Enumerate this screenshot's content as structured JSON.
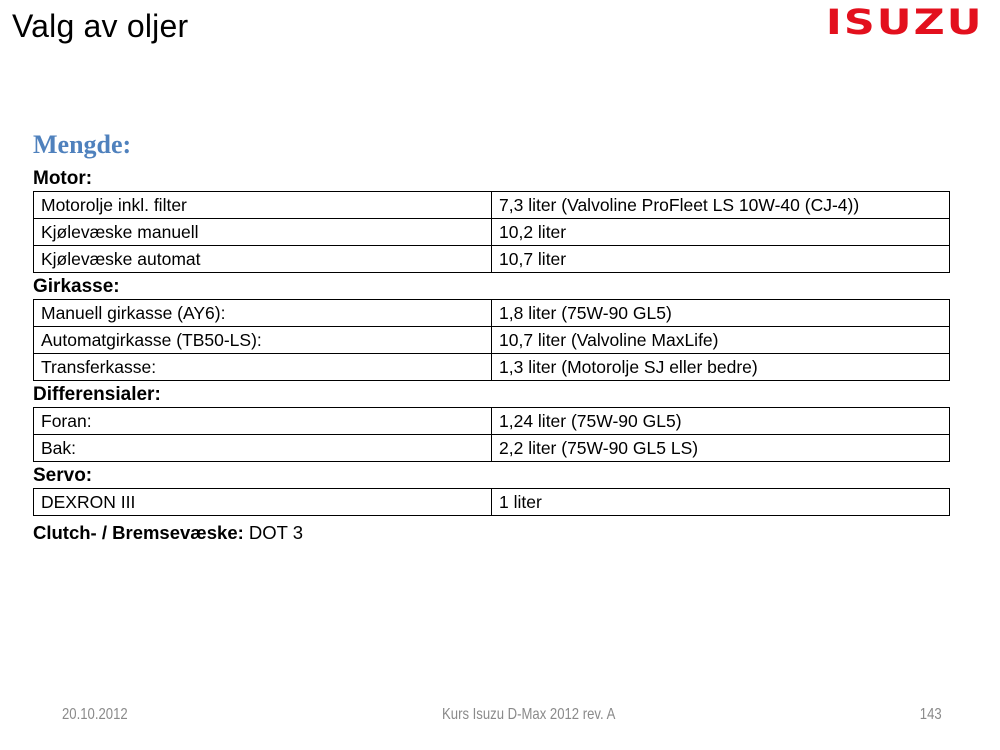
{
  "slide": {
    "title": "Valg av oljer",
    "logo": "ISUZU",
    "heading": "Mengde:",
    "sections": [
      {
        "label": "Motor:",
        "rows": [
          {
            "item": "Motorolje inkl. filter",
            "value": "7,3 liter (Valvoline ProFleet LS 10W-40 (CJ-4))"
          },
          {
            "item": "Kjølevæske manuell",
            "value": "10,2 liter"
          },
          {
            "item": "Kjølevæske automat",
            "value": "10,7 liter"
          }
        ]
      },
      {
        "label": "Girkasse:",
        "rows": [
          {
            "item": "Manuell girkasse (AY6):",
            "value": "1,8 liter (75W-90 GL5)"
          },
          {
            "item": "Automatgirkasse (TB50-LS):",
            "value": "10,7 liter (Valvoline MaxLife)"
          },
          {
            "item": "Transferkasse:",
            "value": "1,3 liter (Motorolje SJ eller bedre)"
          }
        ]
      },
      {
        "label": "Differensialer:",
        "rows": [
          {
            "item": "Foran:",
            "value": "1,24 liter (75W-90 GL5)"
          },
          {
            "item": "Bak:",
            "value": "2,2 liter (75W-90 GL5 LS)"
          }
        ]
      },
      {
        "label": "Servo:",
        "rows": [
          {
            "item": "DEXRON III",
            "value": "1 liter"
          }
        ]
      }
    ],
    "clutch_label": "Clutch- / Bremsevæske:",
    "clutch_value": "DOT 3",
    "footer": {
      "date": "20.10.2012",
      "course": "Kurs Isuzu D-Max 2012 rev. A",
      "page": "143"
    }
  },
  "colors": {
    "heading_blue": "#4f81bd",
    "logo_red": "#e3101d",
    "footer_gray": "#8a8a8a",
    "table_border": "#000000",
    "background": "#ffffff"
  }
}
